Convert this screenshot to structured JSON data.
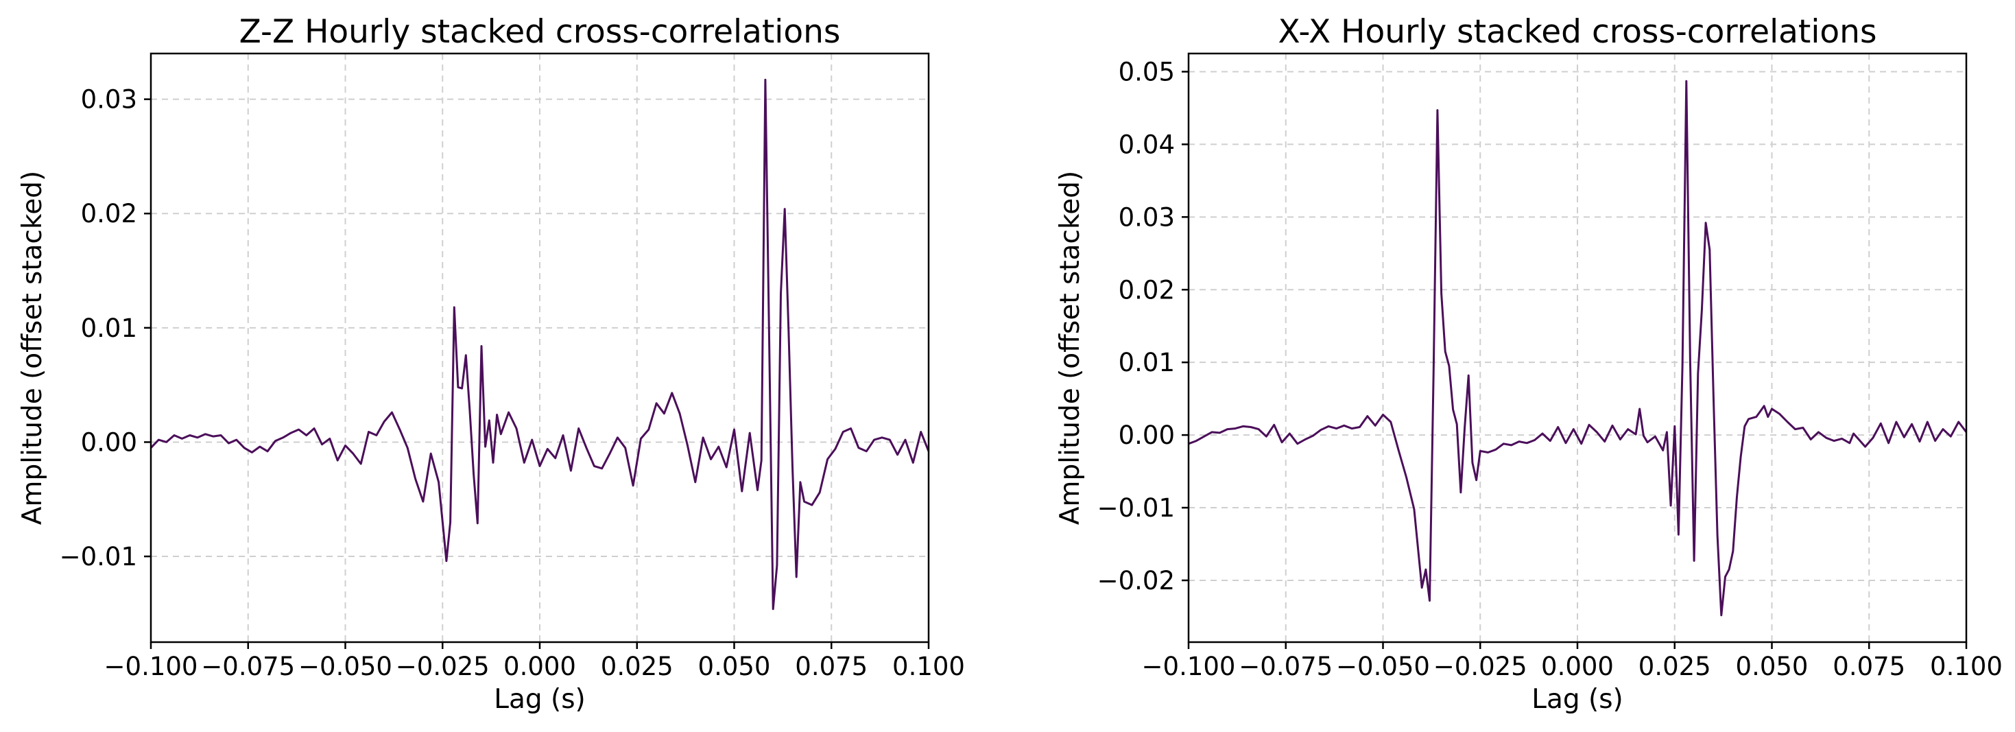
{
  "chart_data": [
    {
      "type": "line",
      "title": "Z-Z Hourly stacked cross-correlations",
      "xlabel": "Lag (s)",
      "ylabel": "Amplitude (offset stacked)",
      "xlim": [
        -0.1,
        0.1
      ],
      "ylim": [
        -0.0175,
        0.034
      ],
      "grid": true,
      "color": "#4b0f5a",
      "xticks": [
        -0.1,
        -0.075,
        -0.05,
        -0.025,
        0.0,
        0.025,
        0.05,
        0.075,
        0.1
      ],
      "xtick_labels": [
        "−0.100",
        "−0.075",
        "−0.050",
        "−0.025",
        "0.000",
        "0.025",
        "0.050",
        "0.075",
        "0.100"
      ],
      "yticks": [
        -0.01,
        0.0,
        0.01,
        0.02,
        0.03
      ],
      "ytick_labels": [
        "−0.01",
        "0.00",
        "0.01",
        "0.02",
        "0.03"
      ],
      "series": [
        {
          "name": "Z-Z",
          "points": [
            [
              -0.1,
              -0.0005
            ],
            [
              -0.098,
              0.0002
            ],
            [
              -0.096,
              0.0
            ],
            [
              -0.094,
              0.0006
            ],
            [
              -0.092,
              0.0003
            ],
            [
              -0.09,
              0.0006
            ],
            [
              -0.088,
              0.0004
            ],
            [
              -0.086,
              0.0007
            ],
            [
              -0.084,
              0.0005
            ],
            [
              -0.082,
              0.0006
            ],
            [
              -0.08,
              -0.0001
            ],
            [
              -0.078,
              0.0002
            ],
            [
              -0.076,
              -0.0005
            ],
            [
              -0.074,
              -0.0009
            ],
            [
              -0.072,
              -0.0004
            ],
            [
              -0.07,
              -0.0008
            ],
            [
              -0.068,
              0.0001
            ],
            [
              -0.066,
              0.0004
            ],
            [
              -0.064,
              0.0008
            ],
            [
              -0.062,
              0.0011
            ],
            [
              -0.06,
              0.0006
            ],
            [
              -0.058,
              0.0012
            ],
            [
              -0.056,
              -0.0002
            ],
            [
              -0.054,
              0.0003
            ],
            [
              -0.052,
              -0.0016
            ],
            [
              -0.05,
              -0.0003
            ],
            [
              -0.048,
              -0.001
            ],
            [
              -0.046,
              -0.0019
            ],
            [
              -0.044,
              0.0009
            ],
            [
              -0.042,
              0.0006
            ],
            [
              -0.04,
              0.0018
            ],
            [
              -0.038,
              0.0026
            ],
            [
              -0.036,
              0.0011
            ],
            [
              -0.034,
              -0.0005
            ],
            [
              -0.032,
              -0.0032
            ],
            [
              -0.03,
              -0.0052
            ],
            [
              -0.028,
              -0.001
            ],
            [
              -0.026,
              -0.0035
            ],
            [
              -0.024,
              -0.0104
            ],
            [
              -0.023,
              -0.007
            ],
            [
              -0.022,
              0.0118
            ],
            [
              -0.021,
              0.0048
            ],
            [
              -0.02,
              0.0047
            ],
            [
              -0.019,
              0.0076
            ],
            [
              -0.018,
              0.0028
            ],
            [
              -0.017,
              -0.0028
            ],
            [
              -0.016,
              -0.0071
            ],
            [
              -0.015,
              0.0084
            ],
            [
              -0.014,
              -0.0004
            ],
            [
              -0.013,
              0.0019
            ],
            [
              -0.012,
              -0.0018
            ],
            [
              -0.011,
              0.0024
            ],
            [
              -0.01,
              0.0007
            ],
            [
              -0.008,
              0.0026
            ],
            [
              -0.006,
              0.0012
            ],
            [
              -0.004,
              -0.0018
            ],
            [
              -0.002,
              0.0002
            ],
            [
              0.0,
              -0.0021
            ],
            [
              0.002,
              -0.0006
            ],
            [
              0.004,
              -0.0014
            ],
            [
              0.006,
              0.0006
            ],
            [
              0.008,
              -0.0025
            ],
            [
              0.01,
              0.0012
            ],
            [
              0.012,
              -0.0005
            ],
            [
              0.014,
              -0.0021
            ],
            [
              0.016,
              -0.0023
            ],
            [
              0.018,
              -0.001
            ],
            [
              0.02,
              0.0004
            ],
            [
              0.022,
              -0.0005
            ],
            [
              0.024,
              -0.0038
            ],
            [
              0.026,
              0.0003
            ],
            [
              0.028,
              0.0011
            ],
            [
              0.03,
              0.0034
            ],
            [
              0.032,
              0.0025
            ],
            [
              0.034,
              0.0043
            ],
            [
              0.036,
              0.0025
            ],
            [
              0.038,
              -0.0003
            ],
            [
              0.04,
              -0.0035
            ],
            [
              0.042,
              0.0004
            ],
            [
              0.044,
              -0.0015
            ],
            [
              0.046,
              -0.0004
            ],
            [
              0.048,
              -0.0022
            ],
            [
              0.05,
              0.0011
            ],
            [
              0.052,
              -0.0043
            ],
            [
              0.054,
              0.0008
            ],
            [
              0.056,
              -0.0042
            ],
            [
              0.057,
              -0.0016
            ],
            [
              0.058,
              0.0317
            ],
            [
              0.059,
              0.0091
            ],
            [
              0.06,
              -0.0146
            ],
            [
              0.061,
              -0.0108
            ],
            [
              0.062,
              0.013
            ],
            [
              0.063,
              0.0204
            ],
            [
              0.064,
              0.0096
            ],
            [
              0.065,
              -0.0022
            ],
            [
              0.066,
              -0.0118
            ],
            [
              0.067,
              -0.0035
            ],
            [
              0.068,
              -0.0052
            ],
            [
              0.07,
              -0.0055
            ],
            [
              0.072,
              -0.0044
            ],
            [
              0.074,
              -0.0015
            ],
            [
              0.076,
              -0.0006
            ],
            [
              0.078,
              0.0009
            ],
            [
              0.08,
              0.0012
            ],
            [
              0.082,
              -0.0005
            ],
            [
              0.084,
              -0.0008
            ],
            [
              0.086,
              0.0002
            ],
            [
              0.088,
              0.0004
            ],
            [
              0.09,
              0.0002
            ],
            [
              0.092,
              -0.0011
            ],
            [
              0.094,
              0.0002
            ],
            [
              0.096,
              -0.0018
            ],
            [
              0.098,
              0.0009
            ],
            [
              0.1,
              -0.0008
            ]
          ]
        }
      ]
    },
    {
      "type": "line",
      "title": "X-X Hourly stacked cross-correlations",
      "xlabel": "Lag (s)",
      "ylabel": "Amplitude (offset stacked)",
      "xlim": [
        -0.1,
        0.1
      ],
      "ylim": [
        -0.0285,
        0.0525
      ],
      "grid": true,
      "color": "#4b0f5a",
      "xticks": [
        -0.1,
        -0.075,
        -0.05,
        -0.025,
        0.0,
        0.025,
        0.05,
        0.075,
        0.1
      ],
      "xtick_labels": [
        "−0.100",
        "−0.075",
        "−0.050",
        "−0.025",
        "0.000",
        "0.025",
        "0.050",
        "0.075",
        "0.100"
      ],
      "yticks": [
        -0.02,
        -0.01,
        0.0,
        0.01,
        0.02,
        0.03,
        0.04,
        0.05
      ],
      "ytick_labels": [
        "−0.02",
        "−0.01",
        "0.00",
        "0.01",
        "0.02",
        "0.03",
        "0.04",
        "0.05"
      ],
      "series": [
        {
          "name": "X-X",
          "points": [
            [
              -0.1,
              -0.0012
            ],
            [
              -0.098,
              -0.0008
            ],
            [
              -0.096,
              -0.0002
            ],
            [
              -0.094,
              0.0004
            ],
            [
              -0.092,
              0.0003
            ],
            [
              -0.09,
              0.0008
            ],
            [
              -0.088,
              0.0009
            ],
            [
              -0.086,
              0.0012
            ],
            [
              -0.084,
              0.0011
            ],
            [
              -0.082,
              0.0008
            ],
            [
              -0.08,
              -0.0002
            ],
            [
              -0.078,
              0.0014
            ],
            [
              -0.076,
              -0.001
            ],
            [
              -0.074,
              0.0002
            ],
            [
              -0.072,
              -0.0012
            ],
            [
              -0.07,
              -0.0006
            ],
            [
              -0.068,
              -0.0001
            ],
            [
              -0.066,
              0.0007
            ],
            [
              -0.064,
              0.0012
            ],
            [
              -0.062,
              0.0009
            ],
            [
              -0.06,
              0.0013
            ],
            [
              -0.058,
              0.0009
            ],
            [
              -0.056,
              0.0011
            ],
            [
              -0.054,
              0.0026
            ],
            [
              -0.052,
              0.0013
            ],
            [
              -0.05,
              0.0028
            ],
            [
              -0.048,
              0.0018
            ],
            [
              -0.046,
              -0.0021
            ],
            [
              -0.044,
              -0.0058
            ],
            [
              -0.042,
              -0.0102
            ],
            [
              -0.04,
              -0.021
            ],
            [
              -0.039,
              -0.0185
            ],
            [
              -0.038,
              -0.0228
            ],
            [
              -0.037,
              0.0085
            ],
            [
              -0.036,
              0.0447
            ],
            [
              -0.035,
              0.0195
            ],
            [
              -0.034,
              0.0115
            ],
            [
              -0.033,
              0.0095
            ],
            [
              -0.032,
              0.0035
            ],
            [
              -0.031,
              0.0015
            ],
            [
              -0.03,
              -0.0079
            ],
            [
              -0.029,
              0.001
            ],
            [
              -0.028,
              0.0082
            ],
            [
              -0.027,
              -0.0038
            ],
            [
              -0.026,
              -0.0062
            ],
            [
              -0.025,
              -0.0022
            ],
            [
              -0.023,
              -0.0024
            ],
            [
              -0.021,
              -0.002
            ],
            [
              -0.019,
              -0.0012
            ],
            [
              -0.017,
              -0.0014
            ],
            [
              -0.015,
              -0.0009
            ],
            [
              -0.013,
              -0.0011
            ],
            [
              -0.011,
              -0.0007
            ],
            [
              -0.009,
              0.0002
            ],
            [
              -0.007,
              -0.0008
            ],
            [
              -0.005,
              0.0011
            ],
            [
              -0.003,
              -0.0011
            ],
            [
              -0.001,
              0.0008
            ],
            [
              0.001,
              -0.0012
            ],
            [
              0.003,
              0.0014
            ],
            [
              0.005,
              0.0004
            ],
            [
              0.007,
              -0.0009
            ],
            [
              0.009,
              0.0013
            ],
            [
              0.011,
              -0.0006
            ],
            [
              0.013,
              0.0008
            ],
            [
              0.015,
              0.0001
            ],
            [
              0.016,
              0.0036
            ],
            [
              0.017,
              -0.0001
            ],
            [
              0.018,
              -0.001
            ],
            [
              0.02,
              -0.0002
            ],
            [
              0.022,
              -0.0021
            ],
            [
              0.023,
              0.0004
            ],
            [
              0.024,
              -0.0097
            ],
            [
              0.025,
              0.0012
            ],
            [
              0.026,
              -0.0137
            ],
            [
              0.027,
              0.0095
            ],
            [
              0.028,
              0.0487
            ],
            [
              0.029,
              0.0102
            ],
            [
              0.03,
              -0.0173
            ],
            [
              0.031,
              0.0085
            ],
            [
              0.032,
              0.0172
            ],
            [
              0.033,
              0.0292
            ],
            [
              0.034,
              0.0255
            ],
            [
              0.035,
              0.0052
            ],
            [
              0.036,
              -0.0138
            ],
            [
              0.037,
              -0.0248
            ],
            [
              0.038,
              -0.0195
            ],
            [
              0.039,
              -0.0185
            ],
            [
              0.04,
              -0.016
            ],
            [
              0.041,
              -0.0085
            ],
            [
              0.042,
              -0.003
            ],
            [
              0.043,
              0.0012
            ],
            [
              0.044,
              0.0022
            ],
            [
              0.046,
              0.0025
            ],
            [
              0.048,
              0.004
            ],
            [
              0.049,
              0.0025
            ],
            [
              0.05,
              0.0036
            ],
            [
              0.052,
              0.0029
            ],
            [
              0.054,
              0.0018
            ],
            [
              0.056,
              0.0008
            ],
            [
              0.058,
              0.001
            ],
            [
              0.06,
              -0.0006
            ],
            [
              0.062,
              0.0004
            ],
            [
              0.064,
              -0.0004
            ],
            [
              0.066,
              -0.0008
            ],
            [
              0.068,
              -0.0005
            ],
            [
              0.07,
              -0.0011
            ],
            [
              0.071,
              0.0002
            ],
            [
              0.072,
              -0.0004
            ],
            [
              0.074,
              -0.0016
            ],
            [
              0.076,
              -0.0004
            ],
            [
              0.078,
              0.0016
            ],
            [
              0.08,
              -0.0011
            ],
            [
              0.082,
              0.0018
            ],
            [
              0.084,
              -0.0003
            ],
            [
              0.086,
              0.0015
            ],
            [
              0.088,
              -0.0009
            ],
            [
              0.09,
              0.0018
            ],
            [
              0.092,
              -0.0008
            ],
            [
              0.094,
              0.0008
            ],
            [
              0.096,
              -0.0002
            ],
            [
              0.098,
              0.0018
            ],
            [
              0.1,
              0.0004
            ]
          ]
        }
      ]
    }
  ]
}
